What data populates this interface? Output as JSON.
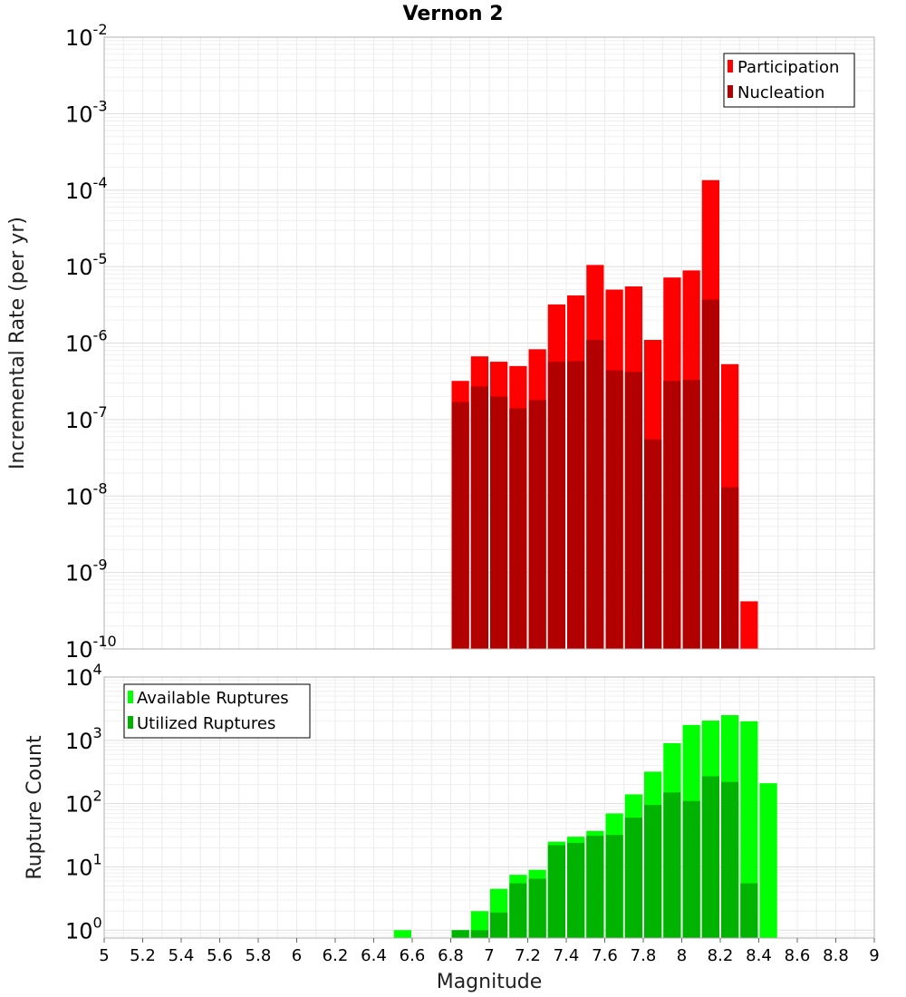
{
  "chart_data": [
    {
      "type": "bar",
      "title": "Vernon 2",
      "xlabel": "",
      "ylabel": "Incremental Rate (per yr)",
      "yscale": "log",
      "ylim": [
        1e-10,
        0.01
      ],
      "xlim": [
        5,
        9
      ],
      "grid": true,
      "legend_position": "top-right",
      "bar_width": 0.1,
      "series": [
        {
          "name": "Participation",
          "color": "#ff0000",
          "x": [
            6.85,
            6.95,
            7.05,
            7.15,
            7.25,
            7.35,
            7.45,
            7.55,
            7.65,
            7.75,
            7.85,
            7.95,
            8.05,
            8.15,
            8.25,
            8.35
          ],
          "values": [
            3.2e-07,
            6.7e-07,
            5.7e-07,
            5e-07,
            8.3e-07,
            3.2e-06,
            4.2e-06,
            1.05e-05,
            5e-06,
            5.5e-06,
            1.1e-06,
            7.2e-06,
            8.9e-06,
            0.000135,
            5.3e-07,
            4.2e-10
          ]
        },
        {
          "name": "Nucleation",
          "color": "#b20000",
          "x": [
            6.85,
            6.95,
            7.05,
            7.15,
            7.25,
            7.35,
            7.45,
            7.55,
            7.65,
            7.75,
            7.85,
            7.95,
            8.05,
            8.15,
            8.25
          ],
          "values": [
            1.7e-07,
            2.7e-07,
            2e-07,
            1.4e-07,
            1.8e-07,
            5.7e-07,
            5.8e-07,
            1.1e-06,
            4.4e-07,
            4.2e-07,
            5.5e-08,
            3.2e-07,
            3.3e-07,
            3.7e-06,
            1.3e-08
          ]
        }
      ]
    },
    {
      "type": "bar",
      "title": "",
      "xlabel": "Magnitude",
      "ylabel": "Rupture Count",
      "yscale": "log",
      "ylim": [
        0.75,
        10000
      ],
      "xlim": [
        5,
        9
      ],
      "grid": true,
      "legend_position": "top-left",
      "bar_width": 0.1,
      "series": [
        {
          "name": "Available Ruptures",
          "color": "#00ff00",
          "x": [
            6.55,
            6.85,
            6.95,
            7.05,
            7.15,
            7.25,
            7.35,
            7.45,
            7.55,
            7.65,
            7.75,
            7.85,
            7.95,
            8.05,
            8.15,
            8.25,
            8.35,
            8.45
          ],
          "values": [
            1,
            1,
            2,
            4.5,
            7.5,
            9,
            25,
            30,
            37,
            70,
            140,
            320,
            900,
            1750,
            2050,
            2500,
            2000,
            210
          ]
        },
        {
          "name": "Utilized Ruptures",
          "color": "#00b300",
          "x": [
            6.85,
            6.95,
            7.05,
            7.15,
            7.25,
            7.35,
            7.45,
            7.55,
            7.65,
            7.75,
            7.85,
            7.95,
            8.05,
            8.15,
            8.25,
            8.35
          ],
          "values": [
            1,
            1,
            1.9,
            5.5,
            6.5,
            22,
            24,
            31,
            32,
            60,
            95,
            150,
            110,
            270,
            220,
            5.5
          ]
        }
      ]
    }
  ],
  "x_ticks": [
    "5",
    "5.2",
    "5.4",
    "5.6",
    "5.8",
    "6",
    "6.2",
    "6.4",
    "6.6",
    "6.8",
    "7",
    "7.2",
    "7.4",
    "7.6",
    "7.8",
    "8",
    "8.2",
    "8.4",
    "8.6",
    "8.8",
    "9"
  ],
  "top_y_exponents": [
    "-10",
    "-9",
    "-8",
    "-7",
    "-6",
    "-5",
    "-4",
    "-3",
    "-2"
  ],
  "bottom_y_exponents": [
    "0",
    "1",
    "2",
    "3",
    "4"
  ],
  "y_tick_base": "10"
}
